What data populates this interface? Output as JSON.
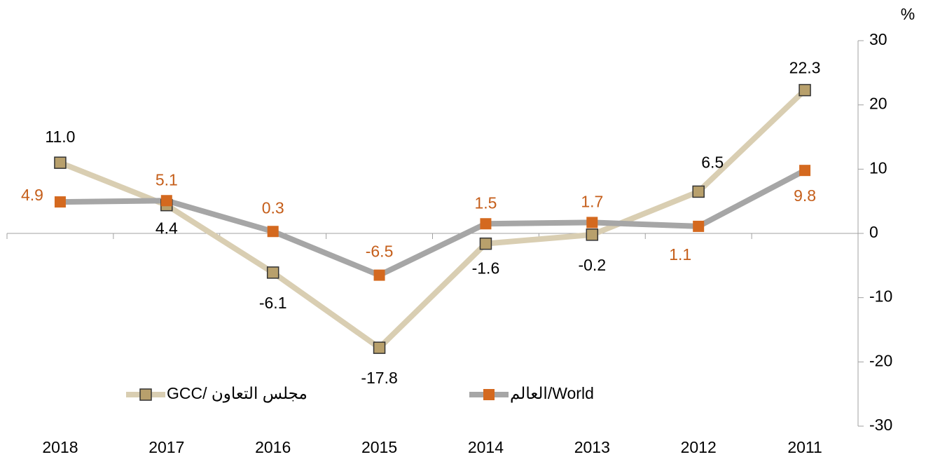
{
  "chart_data": {
    "type": "line",
    "y_label": "%",
    "categories": [
      "2018",
      "2017",
      "2016",
      "2015",
      "2014",
      "2013",
      "2012",
      "2011"
    ],
    "series": [
      {
        "name": "GCC/ مجلس التعاون",
        "color": "#d9ceb2",
        "marker_color": "#b8a06c",
        "values": [
          11.0,
          4.4,
          -6.1,
          -17.8,
          -1.6,
          -0.2,
          6.5,
          22.3
        ],
        "value_labels": [
          "11.0",
          "4.4",
          "-6.1",
          "-17.8",
          "-1.6",
          "-0.2",
          "6.5",
          "22.3"
        ]
      },
      {
        "name": "العالم/World",
        "color": "#a6a6a6",
        "marker_color": "#d4691f",
        "values": [
          4.9,
          5.1,
          0.3,
          -6.5,
          1.5,
          1.7,
          1.1,
          9.8
        ],
        "value_labels": [
          "4.9",
          "5.1",
          "0.3",
          "-6.5",
          "1.5",
          "1.7",
          "1.1",
          "9.8"
        ]
      }
    ],
    "ylim": [
      -30,
      30
    ],
    "yticks": [
      -30,
      -20,
      -10,
      0,
      10,
      20,
      30
    ]
  }
}
